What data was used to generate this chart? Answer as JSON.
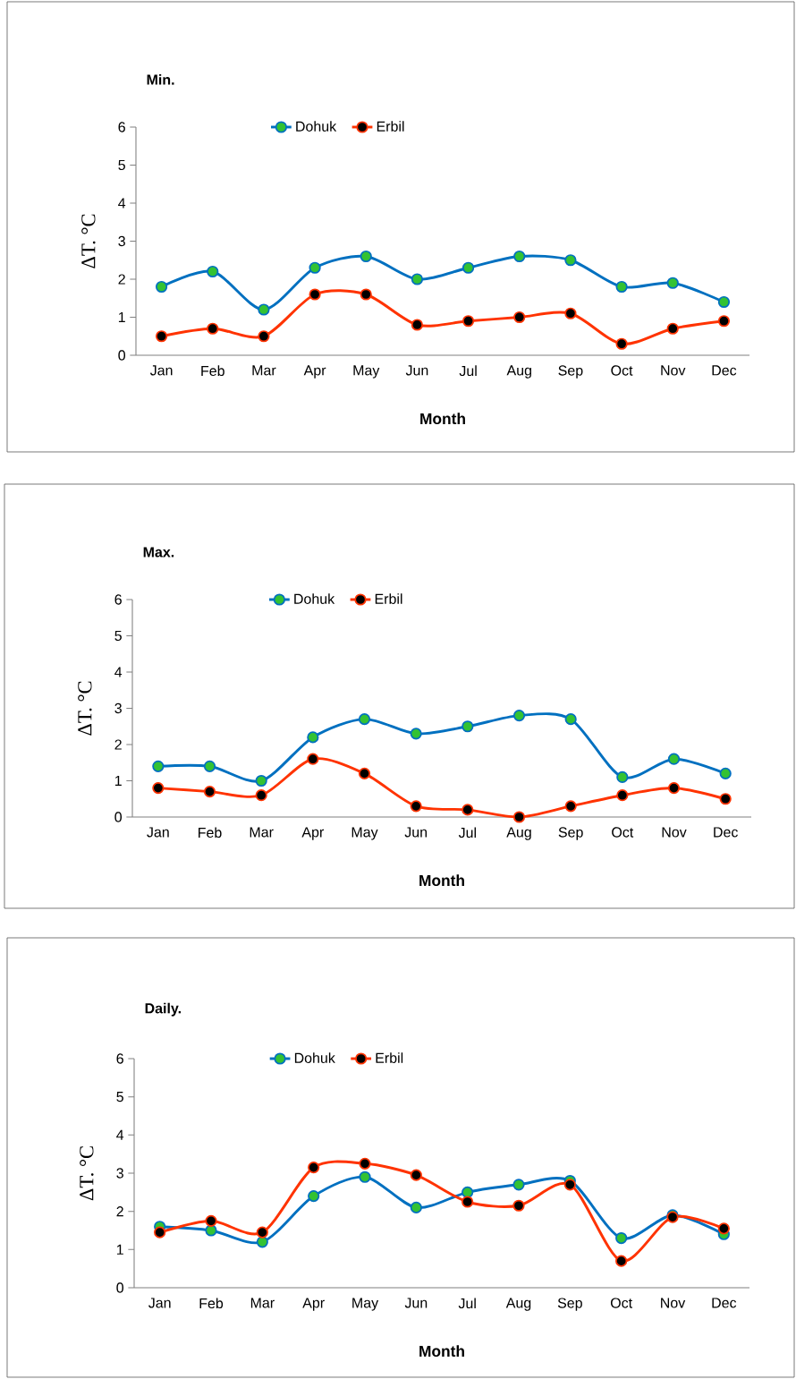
{
  "chart_data": [
    {
      "type": "line",
      "title": "Min.",
      "xlabel": "Month",
      "ylabel": "ΔT. °C",
      "categories": [
        "Jan",
        "Feb",
        "Mar",
        "Apr",
        "May",
        "Jun",
        "Jul",
        "Aug",
        "Sep",
        "Oct",
        "Nov",
        "Dec"
      ],
      "ylim": [
        0,
        6
      ],
      "yticks": [
        0,
        1,
        2,
        3,
        4,
        5,
        6
      ],
      "legend": "top",
      "marker": "circle",
      "grid": false,
      "series": [
        {
          "name": "Dohuk",
          "color": "#0070c0",
          "values": [
            1.8,
            2.2,
            1.2,
            2.3,
            2.6,
            2.0,
            2.3,
            2.6,
            2.5,
            1.8,
            1.9,
            1.4
          ]
        },
        {
          "name": "Erbil",
          "color": "#ff3300",
          "values": [
            0.5,
            0.7,
            0.5,
            1.6,
            1.6,
            0.8,
            0.9,
            1.0,
            1.1,
            0.3,
            0.7,
            0.9
          ]
        }
      ]
    },
    {
      "type": "line",
      "title": "Max.",
      "xlabel": "Month",
      "ylabel": "ΔT. °C",
      "categories": [
        "Jan",
        "Feb",
        "Mar",
        "Apr",
        "May",
        "Jun",
        "Jul",
        "Aug",
        "Sep",
        "Oct",
        "Nov",
        "Dec"
      ],
      "ylim": [
        0,
        6
      ],
      "yticks": [
        0,
        1,
        2,
        3,
        4,
        5,
        6
      ],
      "legend": "top",
      "marker": "circle",
      "grid": false,
      "series": [
        {
          "name": "Dohuk",
          "color": "#0070c0",
          "values": [
            1.4,
            1.4,
            1.0,
            2.2,
            2.7,
            2.3,
            2.5,
            2.8,
            2.7,
            1.1,
            1.6,
            1.2
          ]
        },
        {
          "name": "Erbil",
          "color": "#ff3300",
          "values": [
            0.8,
            0.7,
            0.6,
            1.6,
            1.2,
            0.3,
            0.2,
            0.0,
            0.3,
            0.6,
            0.8,
            0.5
          ]
        }
      ]
    },
    {
      "type": "line",
      "title": "Daily.",
      "xlabel": "Month",
      "ylabel": "ΔT. °C",
      "categories": [
        "Jan",
        "Feb",
        "Mar",
        "Apr",
        "May",
        "Jun",
        "Jul",
        "Aug",
        "Sep",
        "Oct",
        "Nov",
        "Dec"
      ],
      "ylim": [
        0,
        6
      ],
      "yticks": [
        0,
        1,
        2,
        3,
        4,
        5,
        6
      ],
      "legend": "top",
      "marker": "circle",
      "grid": false,
      "series": [
        {
          "name": "Dohuk",
          "color": "#0070c0",
          "values": [
            1.6,
            1.5,
            1.2,
            2.4,
            2.9,
            2.1,
            2.5,
            2.7,
            2.8,
            1.3,
            1.9,
            1.4
          ]
        },
        {
          "name": "Erbil",
          "color": "#ff3300",
          "values": [
            1.45,
            1.75,
            1.45,
            3.15,
            3.25,
            2.95,
            2.25,
            2.15,
            2.7,
            0.7,
            1.85,
            1.55
          ]
        }
      ]
    }
  ]
}
